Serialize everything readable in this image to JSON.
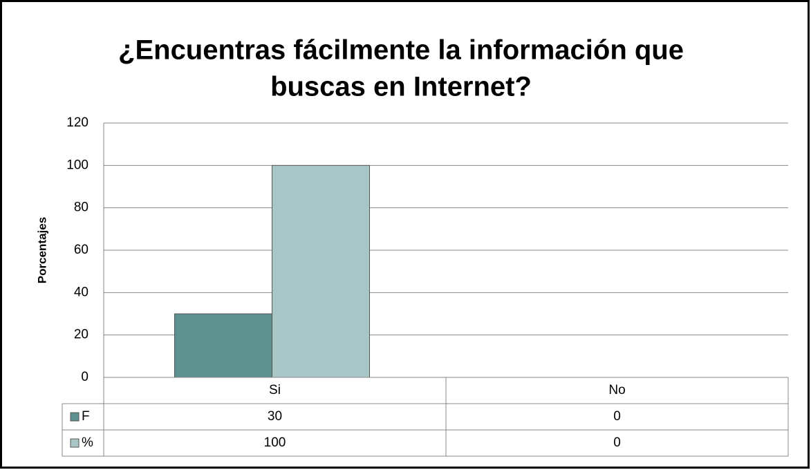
{
  "chart_data": {
    "type": "bar",
    "title": [
      "¿Encuentras fácilmente la información que",
      "buscas en Internet?"
    ],
    "y_label": "Porcentajes",
    "categories": [
      "Si",
      "No"
    ],
    "series": [
      {
        "name": "F",
        "color": "#5e9090",
        "values": [
          30,
          0
        ]
      },
      {
        "name": "%",
        "color": "#a9c6c6",
        "values": [
          100,
          0
        ]
      }
    ],
    "ylim": [
      0,
      120
    ],
    "yticks": [
      0,
      20,
      40,
      60,
      80,
      100,
      120
    ],
    "grid": true,
    "data_table": true
  }
}
